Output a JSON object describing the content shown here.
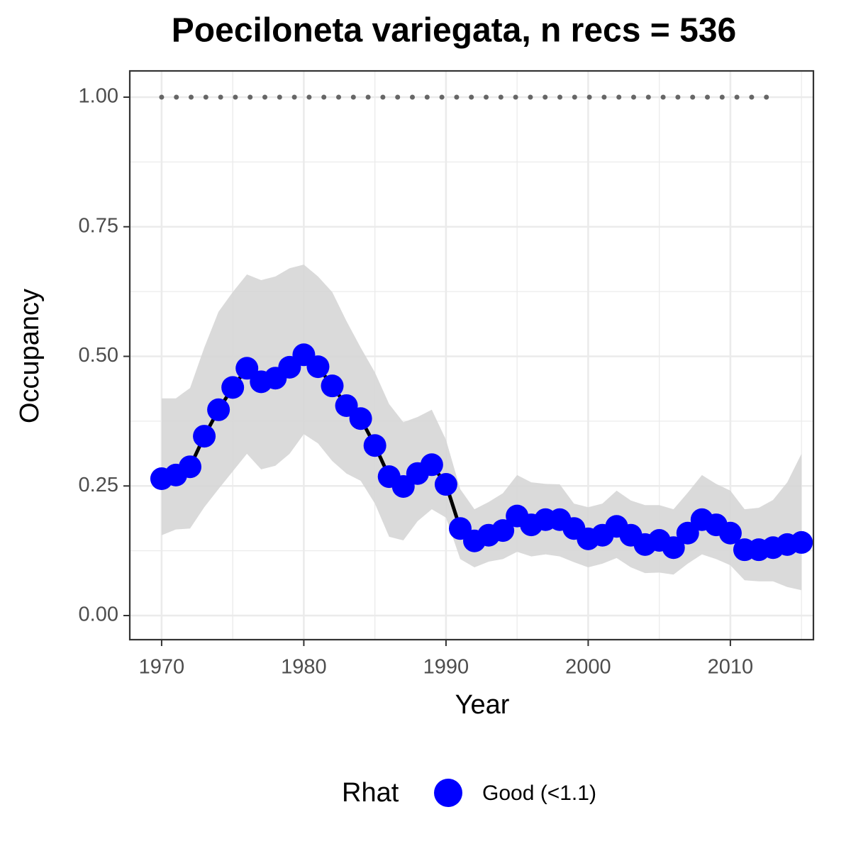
{
  "chart_data": {
    "type": "line",
    "title": "Poeciloneta variegata, n recs = 536",
    "x_label": "Year",
    "y_label": "Occupancy",
    "legend_title": "Rhat",
    "x": [
      1970,
      1971,
      1972,
      1973,
      1974,
      1975,
      1976,
      1977,
      1978,
      1979,
      1980,
      1981,
      1982,
      1983,
      1984,
      1985,
      1986,
      1987,
      1988,
      1989,
      1990,
      1991,
      1992,
      1993,
      1994,
      1995,
      1996,
      1997,
      1998,
      1999,
      2000,
      2001,
      2002,
      2003,
      2004,
      2005,
      2006,
      2007,
      2008,
      2009,
      2010,
      2011,
      2012,
      2013,
      2014,
      2015
    ],
    "series": [
      {
        "name": "Good (<1.1)",
        "color": "#0000ff",
        "line_color": "#000000",
        "ribbon_color": "#d6d6d6",
        "values": [
          0.264,
          0.271,
          0.287,
          0.346,
          0.397,
          0.44,
          0.477,
          0.451,
          0.458,
          0.479,
          0.503,
          0.48,
          0.443,
          0.405,
          0.38,
          0.328,
          0.268,
          0.249,
          0.274,
          0.291,
          0.253,
          0.168,
          0.144,
          0.155,
          0.164,
          0.192,
          0.175,
          0.185,
          0.185,
          0.168,
          0.148,
          0.155,
          0.172,
          0.155,
          0.137,
          0.145,
          0.131,
          0.159,
          0.185,
          0.175,
          0.159,
          0.127,
          0.127,
          0.131,
          0.137,
          0.141
        ],
        "upper": [
          0.419,
          0.419,
          0.439,
          0.517,
          0.586,
          0.624,
          0.658,
          0.647,
          0.654,
          0.67,
          0.677,
          0.654,
          0.624,
          0.568,
          0.517,
          0.469,
          0.408,
          0.373,
          0.383,
          0.397,
          0.339,
          0.244,
          0.205,
          0.219,
          0.236,
          0.271,
          0.257,
          0.254,
          0.253,
          0.216,
          0.209,
          0.216,
          0.241,
          0.222,
          0.213,
          0.213,
          0.205,
          0.237,
          0.271,
          0.254,
          0.241,
          0.205,
          0.208,
          0.223,
          0.257,
          0.312
        ],
        "lower": [
          0.155,
          0.166,
          0.168,
          0.209,
          0.244,
          0.278,
          0.312,
          0.282,
          0.289,
          0.312,
          0.35,
          0.332,
          0.298,
          0.274,
          0.26,
          0.216,
          0.152,
          0.145,
          0.182,
          0.205,
          0.189,
          0.109,
          0.093,
          0.104,
          0.109,
          0.123,
          0.114,
          0.118,
          0.114,
          0.103,
          0.093,
          0.1,
          0.111,
          0.093,
          0.082,
          0.083,
          0.079,
          0.1,
          0.118,
          0.109,
          0.097,
          0.068,
          0.066,
          0.066,
          0.055,
          0.049
        ]
      }
    ],
    "reference_line": {
      "x": [
        1970,
        2013
      ],
      "y": 1,
      "color": "#666666"
    },
    "xlim": [
      1967.76,
      2015.84
    ],
    "ylim": [
      -0.0465,
      1.0506
    ],
    "xticks": [
      1970,
      1980,
      1990,
      2000,
      2010
    ],
    "yticks": [
      {
        "value": 0,
        "label": "0.00"
      },
      {
        "value": 0.25,
        "label": "0.25"
      },
      {
        "value": 0.5,
        "label": "0.50"
      },
      {
        "value": 0.75,
        "label": "0.75"
      },
      {
        "value": 1,
        "label": "1.00"
      }
    ],
    "x_minor_ticks": [
      1975,
      1985,
      1995,
      2005,
      2015
    ],
    "y_minor_ticks": [
      0.125,
      0.375,
      0.625,
      0.875
    ],
    "grid": true
  }
}
